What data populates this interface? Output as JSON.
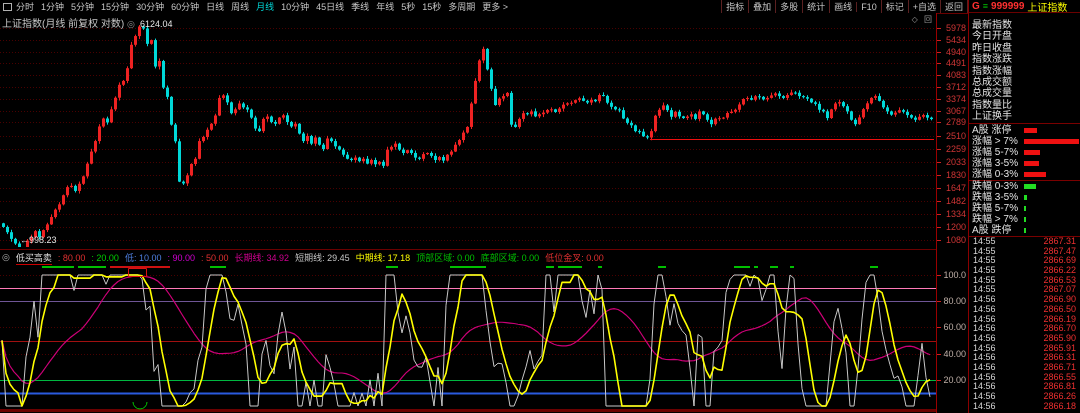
{
  "toolbar": {
    "periods": [
      {
        "label": "分时",
        "active": false
      },
      {
        "label": "1分钟",
        "active": false
      },
      {
        "label": "5分钟",
        "active": false
      },
      {
        "label": "15分钟",
        "active": false
      },
      {
        "label": "30分钟",
        "active": false
      },
      {
        "label": "60分钟",
        "active": false
      },
      {
        "label": "日线",
        "active": false
      },
      {
        "label": "周线",
        "active": false
      },
      {
        "label": "月线",
        "active": true
      },
      {
        "label": "10分钟",
        "active": false
      },
      {
        "label": "45日线",
        "active": false
      },
      {
        "label": "季线",
        "active": false
      },
      {
        "label": "年线",
        "active": false
      },
      {
        "label": "5秒",
        "active": false
      },
      {
        "label": "15秒",
        "active": false
      },
      {
        "label": "多周期",
        "active": false
      },
      {
        "label": "更多 >",
        "active": false
      }
    ],
    "buttons": [
      "指标",
      "叠加",
      "多股",
      "统计",
      "画线",
      "F10",
      "标记",
      "+自选",
      "返回"
    ]
  },
  "symbol": {
    "g": "G",
    "menu_icon": "≡",
    "code": "999999",
    "name": "上证指数"
  },
  "main_chart": {
    "title": "上证指数(月线 前复权 对数)",
    "gear_icon": "◎",
    "pane_icons": "◇ 回",
    "high_label": "6124.04",
    "low_label": "←998.23",
    "price_axis": [
      "5978",
      "5434",
      "4940",
      "4491",
      "4083",
      "3712",
      "3374",
      "3067",
      "2789",
      "2510",
      "2259",
      "2033",
      "1830",
      "1647",
      "1482",
      "1334",
      "1200",
      "1080"
    ]
  },
  "indicator": {
    "icon": "◎",
    "name": "低买高卖",
    "params": [
      {
        "text": ": 80.00",
        "color": "#e03030"
      },
      {
        "text": ": 20.00",
        "color": "#00d000"
      },
      {
        "text": "低: 10.00",
        "color": "#4f7fe0"
      },
      {
        "text": ": 90.00",
        "color": "#d000d0"
      },
      {
        "text": ": 50.00",
        "color": "#e03030"
      },
      {
        "text": "长期线: 34.92",
        "color": "#d00090"
      },
      {
        "text": "短期线: 29.45",
        "color": "#c8c8c8"
      },
      {
        "text": "中期线: 17.18",
        "color": "#ffff00"
      },
      {
        "text": "顶部区域: 0.00",
        "color": "#00c000"
      },
      {
        "text": "底部区域: 0.00",
        "color": "#00c000"
      },
      {
        "text": "低位金叉: 0.00",
        "color": "#e03030"
      }
    ],
    "y_axis_labels": [
      "100.0",
      "80.00",
      "60.00",
      "40.00",
      "20.00"
    ]
  },
  "side_panel": {
    "info_labels": [
      "最新指数",
      "今日开盘",
      "昨日收盘",
      "指数涨跌",
      "指数涨幅",
      "总成交额",
      "总成交量",
      "指数量比",
      "上证换手"
    ],
    "distribution_rows": [
      {
        "label": "A股 涨停",
        "bar": 13,
        "color": "#ee1111"
      },
      {
        "label": "涨幅 > 7%",
        "bar": 55,
        "color": "#ee1111"
      },
      {
        "label": "涨幅 5-7%",
        "bar": 16,
        "color": "#ee1111"
      },
      {
        "label": "涨幅 3-5%",
        "bar": 15,
        "color": "#ee1111"
      },
      {
        "label": "涨幅 0-3%",
        "bar": 22,
        "color": "#ee1111"
      },
      {
        "label": "跌幅 0-3%",
        "bar": 12,
        "color": "#22dd22"
      },
      {
        "label": "跌幅 3-5%",
        "bar": 3,
        "color": "#22dd22"
      },
      {
        "label": "跌幅 5-7%",
        "bar": 2,
        "color": "#22dd22"
      },
      {
        "label": "跌幅 > 7%",
        "bar": 2,
        "color": "#22dd22"
      },
      {
        "label": "A股 跌停",
        "bar": 2,
        "color": "#22dd22"
      }
    ],
    "quotes": [
      {
        "time": "14:55",
        "price": "2867.31"
      },
      {
        "time": "14:55",
        "price": "2867.47"
      },
      {
        "time": "14:55",
        "price": "2866.69"
      },
      {
        "time": "14:55",
        "price": "2866.22"
      },
      {
        "time": "14:55",
        "price": "2866.53"
      },
      {
        "time": "14:55",
        "price": "2867.07"
      },
      {
        "time": "14:56",
        "price": "2866.90"
      },
      {
        "time": "14:56",
        "price": "2866.50"
      },
      {
        "time": "14:56",
        "price": "2866.19"
      },
      {
        "time": "14:56",
        "price": "2866.70"
      },
      {
        "time": "14:56",
        "price": "2865.90"
      },
      {
        "time": "14:56",
        "price": "2865.91"
      },
      {
        "time": "14:56",
        "price": "2866.31"
      },
      {
        "time": "14:56",
        "price": "2866.71"
      },
      {
        "time": "14:56",
        "price": "2866.55"
      },
      {
        "time": "14:56",
        "price": "2866.81"
      },
      {
        "time": "14:56",
        "price": "2866.26"
      },
      {
        "time": "14:56",
        "price": "2866.18"
      }
    ]
  },
  "chart_data": {
    "type": "candlestick",
    "title": "上证指数(月线 前复权 对数)",
    "scale": "log",
    "y_axis_labels": [
      5978,
      5434,
      4940,
      4491,
      4083,
      3712,
      3374,
      3067,
      2789,
      2510,
      2259,
      2033,
      1830,
      1647,
      1482,
      1334,
      1200,
      1080
    ],
    "high_annotation": 6124.04,
    "low_annotation": 998.23,
    "high_index": 34,
    "low_index": 5,
    "support_line_level": 2440,
    "support_line_start_x": 650,
    "closes": [
      1200,
      1150,
      1090,
      1050,
      1005,
      1000,
      1075,
      1105,
      1160,
      1105,
      1170,
      1225,
      1300,
      1380,
      1440,
      1550,
      1655,
      1672,
      1605,
      1700,
      1805,
      2000,
      2205,
      2400,
      2700,
      2880,
      2790,
      3100,
      3405,
      3780,
      3900,
      4320,
      5220,
      5600,
      6050,
      5955,
      5260,
      5420,
      4380,
      4580,
      3695,
      3430,
      2740,
      2395,
      1730,
      1705,
      1820,
      1995,
      2080,
      2400,
      2480,
      2630,
      2760,
      2950,
      3400,
      3470,
      3280,
      3005,
      3100,
      3250,
      3150,
      3095,
      2900,
      2655,
      2600,
      2870,
      2925,
      2800,
      2760,
      2900,
      2955,
      2800,
      2700,
      2760,
      2550,
      2400,
      2500,
      2350,
      2470,
      2330,
      2250,
      2450,
      2400,
      2300,
      2240,
      2150,
      2080,
      2060,
      2100,
      2040,
      2080,
      2000,
      2060,
      1990,
      2030,
      1965,
      2240,
      2290,
      2350,
      2240,
      2180,
      2230,
      2180,
      2100,
      2080,
      2160,
      2180,
      2130,
      2060,
      2110,
      2050,
      2150,
      2205,
      2330,
      2420,
      2570,
      2690,
      3250,
      3900,
      4600,
      5050,
      4280,
      3660,
      3210,
      3380,
      3450,
      3540,
      2740,
      2690,
      2870,
      3005,
      2980,
      3050,
      2930,
      2980,
      3020,
      3085,
      3100,
      3035,
      3120,
      3220,
      3255,
      3270,
      3340,
      3390,
      3320,
      3275,
      3350,
      3310,
      3480,
      3455,
      3270,
      3165,
      3100,
      3080,
      2880,
      2780,
      2725,
      2600,
      2590,
      2495,
      2470,
      2600,
      2945,
      3090,
      3200,
      3080,
      2920,
      3040,
      2930,
      2890,
      2925,
      2980,
      2870,
      3050,
      2980,
      2850,
      2750,
      2875,
      2885,
      2900,
      3010,
      3040,
      3090,
      3225,
      3370,
      3395,
      3350,
      3445,
      3430,
      3360,
      3400,
      3470,
      3525,
      3450,
      3400,
      3480,
      3550,
      3545,
      3450,
      3420,
      3380,
      3280,
      3240,
      3090,
      3050,
      2890,
      3100,
      3250,
      3285,
      3180,
      3050,
      2850,
      2750,
      2905,
      3105,
      3255,
      3400,
      3450,
      3320,
      3150,
      3050,
      2970,
      3020,
      3080,
      3040,
      2960,
      2900,
      2850,
      2920,
      2960,
      2900,
      2866
    ],
    "sub_indicator": {
      "type": "line",
      "name": "低买高卖",
      "levels": {
        "pink_line": 90,
        "purple_line": 80,
        "red_line": 50,
        "green_line": 20,
        "blue_line": 10
      },
      "dotted_levels": [
        100,
        60,
        40
      ],
      "series": [
        {
          "name": "短期线",
          "color": "#c8c8c8",
          "last": 29.45
        },
        {
          "name": "中期线",
          "color": "#ffff00",
          "last": 17.18
        },
        {
          "name": "长期线",
          "color": "#cc0077",
          "last": 34.92
        }
      ]
    }
  }
}
